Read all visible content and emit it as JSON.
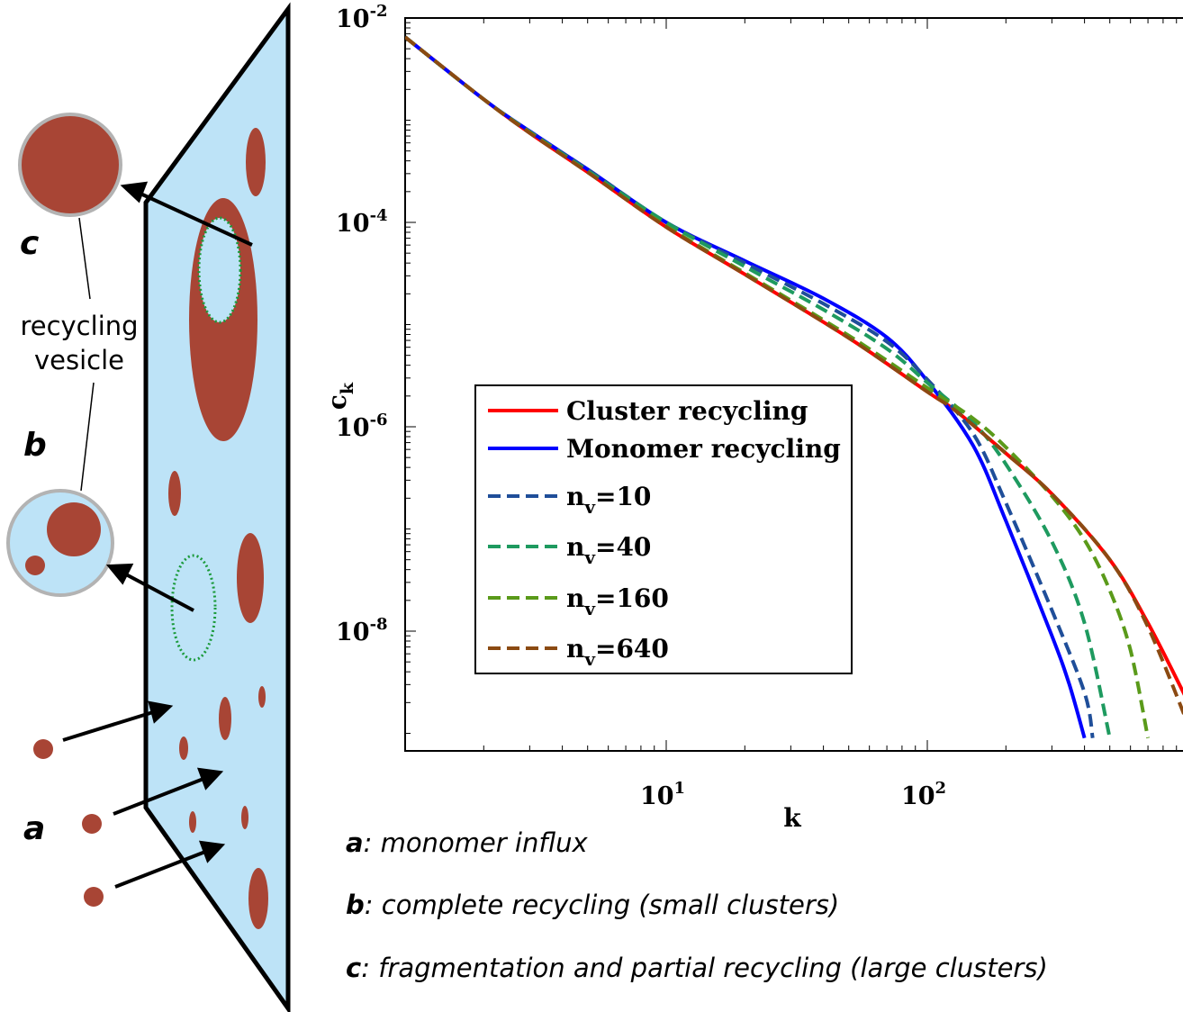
{
  "diagram": {
    "labels": {
      "a": "a",
      "b": "b",
      "c": "c"
    },
    "recycling_vesicle": [
      "recycling",
      "vesicle"
    ],
    "colors": {
      "membrane": "#bde3f7",
      "cluster": "#a84535",
      "dotted_outline": "#1a9a3a",
      "vesicle_rim": "#b3b3b3"
    }
  },
  "chart_data": {
    "type": "line",
    "xlabel": "k",
    "ylabel": "c",
    "ylabel_subscript": "k",
    "xscale": "log",
    "yscale": "log",
    "xlim": [
      1,
      1000
    ],
    "ylim": [
      1e-09,
      0.01
    ],
    "x_ticks": [
      {
        "base": "10",
        "exp": "1",
        "value": 10
      },
      {
        "base": "10",
        "exp": "2",
        "value": 100
      }
    ],
    "y_ticks": [
      {
        "base": "10",
        "exp": "-2",
        "value": 0.01
      },
      {
        "base": "10",
        "exp": "-4",
        "value": 0.0001
      },
      {
        "base": "10",
        "exp": "-6",
        "value": 1e-06
      },
      {
        "base": "10",
        "exp": "-8",
        "value": 1e-08
      }
    ],
    "legend_position": "lower-left",
    "series": [
      {
        "name": "Cluster recycling",
        "color": "#ff0000",
        "style": "solid",
        "x": [
          1,
          2,
          3,
          5,
          10,
          20,
          50,
          100,
          130,
          200,
          300,
          500,
          700,
          1000
        ],
        "y": [
          0.0065,
          0.0016,
          0.00075,
          0.00031,
          9e-05,
          3.1e-05,
          7.4e-06,
          2.2e-06,
          1.4e-06,
          5.5e-07,
          2.2e-07,
          5e-08,
          1.2e-08,
          2e-09
        ]
      },
      {
        "name": "Monomer recycling",
        "color": "#0000ff",
        "style": "solid",
        "x": [
          1,
          2,
          3,
          5,
          10,
          20,
          40,
          70,
          100,
          150,
          200,
          300,
          350,
          400
        ],
        "y": [
          0.0065,
          0.0016,
          0.00078,
          0.00033,
          0.0001,
          4.2e-05,
          1.8e-05,
          7.5e-06,
          2.8e-06,
          6.5e-07,
          1.2e-07,
          9e-09,
          3e-09,
          9e-10
        ]
      },
      {
        "name": "n",
        "subscript": "v",
        "suffix": "=10",
        "color": "#1f4e99",
        "style": "dashed",
        "x": [
          1,
          2,
          3,
          5,
          10,
          20,
          40,
          70,
          100,
          150,
          200,
          300,
          400,
          430
        ],
        "y": [
          0.0065,
          0.0016,
          0.00077,
          0.00033,
          0.0001,
          4e-05,
          1.6e-05,
          6.8e-06,
          2.9e-06,
          8.5e-07,
          1.8e-07,
          1.6e-08,
          2.5e-09,
          9e-10
        ]
      },
      {
        "name": "n",
        "subscript": "v",
        "suffix": "=40",
        "color": "#1e9a5f",
        "style": "dashed",
        "x": [
          1,
          2,
          3,
          5,
          10,
          20,
          40,
          70,
          100,
          150,
          200,
          300,
          400,
          500
        ],
        "y": [
          0.0065,
          0.0016,
          0.00077,
          0.00032,
          0.0001,
          3.7e-05,
          1.4e-05,
          5.8e-06,
          2.7e-06,
          1.1e-06,
          4.3e-07,
          7.5e-08,
          1.2e-08,
          9e-10
        ]
      },
      {
        "name": "n",
        "subscript": "v",
        "suffix": "=160",
        "color": "#5a9a1a",
        "style": "dashed",
        "x": [
          1,
          2,
          3,
          5,
          10,
          20,
          50,
          100,
          150,
          200,
          300,
          400,
          500,
          600,
          700
        ],
        "y": [
          0.0065,
          0.0016,
          0.00076,
          0.00031,
          9.2e-05,
          3.2e-05,
          7.8e-06,
          2.4e-06,
          1.2e-06,
          6.3e-07,
          2.1e-07,
          7.8e-08,
          2.5e-08,
          6.5e-09,
          9e-10
        ]
      },
      {
        "name": "n",
        "subscript": "v",
        "suffix": "=640",
        "color": "#8b4a12",
        "style": "dashed",
        "x": [
          1,
          2,
          3,
          5,
          10,
          20,
          50,
          100,
          130,
          200,
          300,
          500,
          700,
          1000
        ],
        "y": [
          0.0065,
          0.0016,
          0.00075,
          0.00031,
          9e-05,
          3.1e-05,
          7.4e-06,
          2.2e-06,
          1.4e-06,
          5.5e-07,
          2.2e-07,
          5e-08,
          1.1e-08,
          1.2e-09
        ]
      }
    ]
  },
  "captions": [
    {
      "key": "a",
      "text": ": monomer influx"
    },
    {
      "key": "b",
      "text": ": complete recycling (small clusters)"
    },
    {
      "key": "c",
      "text": ": fragmentation and partial recycling (large clusters)"
    }
  ]
}
